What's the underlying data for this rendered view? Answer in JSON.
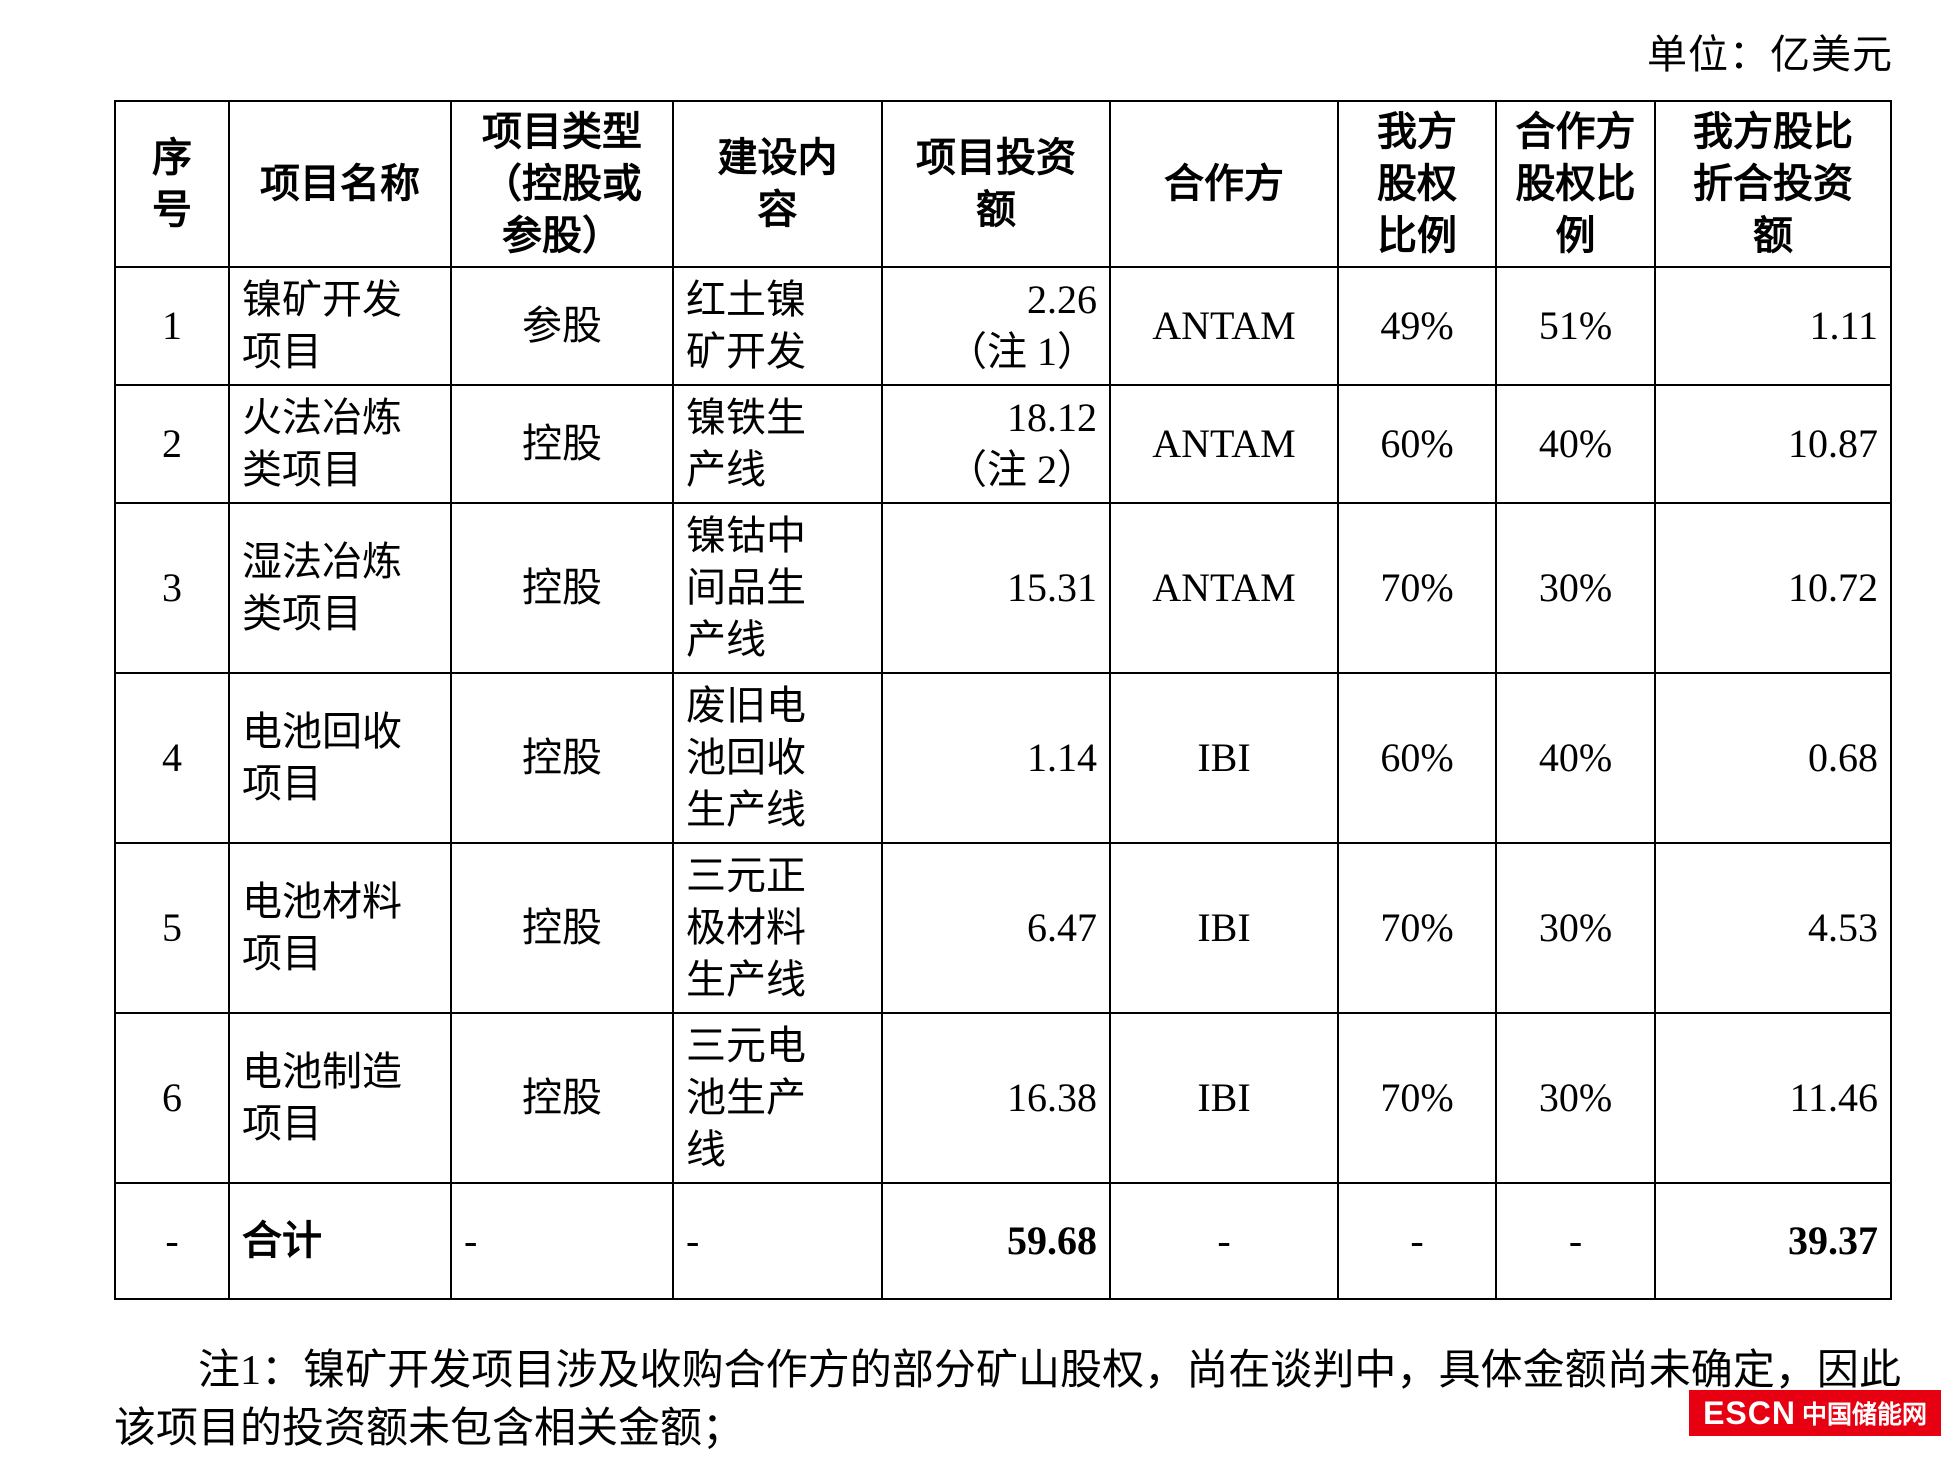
{
  "page": {
    "unit_label": "单位：亿美元"
  },
  "table": {
    "headers": [
      "序\n号",
      "项目名称",
      "项目类型\n（控股或\n参股）",
      "建设内\n容",
      "项目投资\n额",
      "合作方",
      "我方\n股权\n比例",
      "合作方\n股权比\n例",
      "我方股比\n折合投资\n额"
    ],
    "rows": [
      {
        "cells": [
          "1",
          "镍矿开发\n项目",
          "参股",
          "红土镍\n矿开发",
          "2.26\n（注 1）",
          "ANTAM",
          "49%",
          "51%",
          "1.11"
        ]
      },
      {
        "cells": [
          "2",
          "火法冶炼\n类项目",
          "控股",
          "镍铁生\n产线",
          "18.12\n（注 2）",
          "ANTAM",
          "60%",
          "40%",
          "10.87"
        ]
      },
      {
        "cells": [
          "3",
          "湿法冶炼\n类项目",
          "控股",
          "镍钴中\n间品生\n产线",
          "15.31",
          "ANTAM",
          "70%",
          "30%",
          "10.72"
        ]
      },
      {
        "cells": [
          "4",
          "电池回收\n项目",
          "控股",
          "废旧电\n池回收\n生产线",
          "1.14",
          "IBI",
          "60%",
          "40%",
          "0.68"
        ]
      },
      {
        "cells": [
          "5",
          "电池材料\n项目",
          "控股",
          "三元正\n极材料\n生产线",
          "6.47",
          "IBI",
          "70%",
          "30%",
          "4.53"
        ]
      },
      {
        "cells": [
          "6",
          "电池制造\n项目",
          "控股",
          "三元电\n池生产\n线",
          "16.38",
          "IBI",
          "70%",
          "30%",
          "11.46"
        ]
      },
      {
        "cells": [
          "-",
          "合计",
          "-",
          "-",
          "59.68",
          "-",
          "-",
          "-",
          "39.37"
        ]
      }
    ]
  },
  "note": {
    "text": "注1：镍矿开发项目涉及收购合作方的部分矿山股权，尚在谈判中，具体金额尚未确定，因此该项目的投资额未包含相关金额；"
  },
  "logo": {
    "abbr": "ESCN",
    "name": "中国储能网",
    "color": "#e60012"
  }
}
